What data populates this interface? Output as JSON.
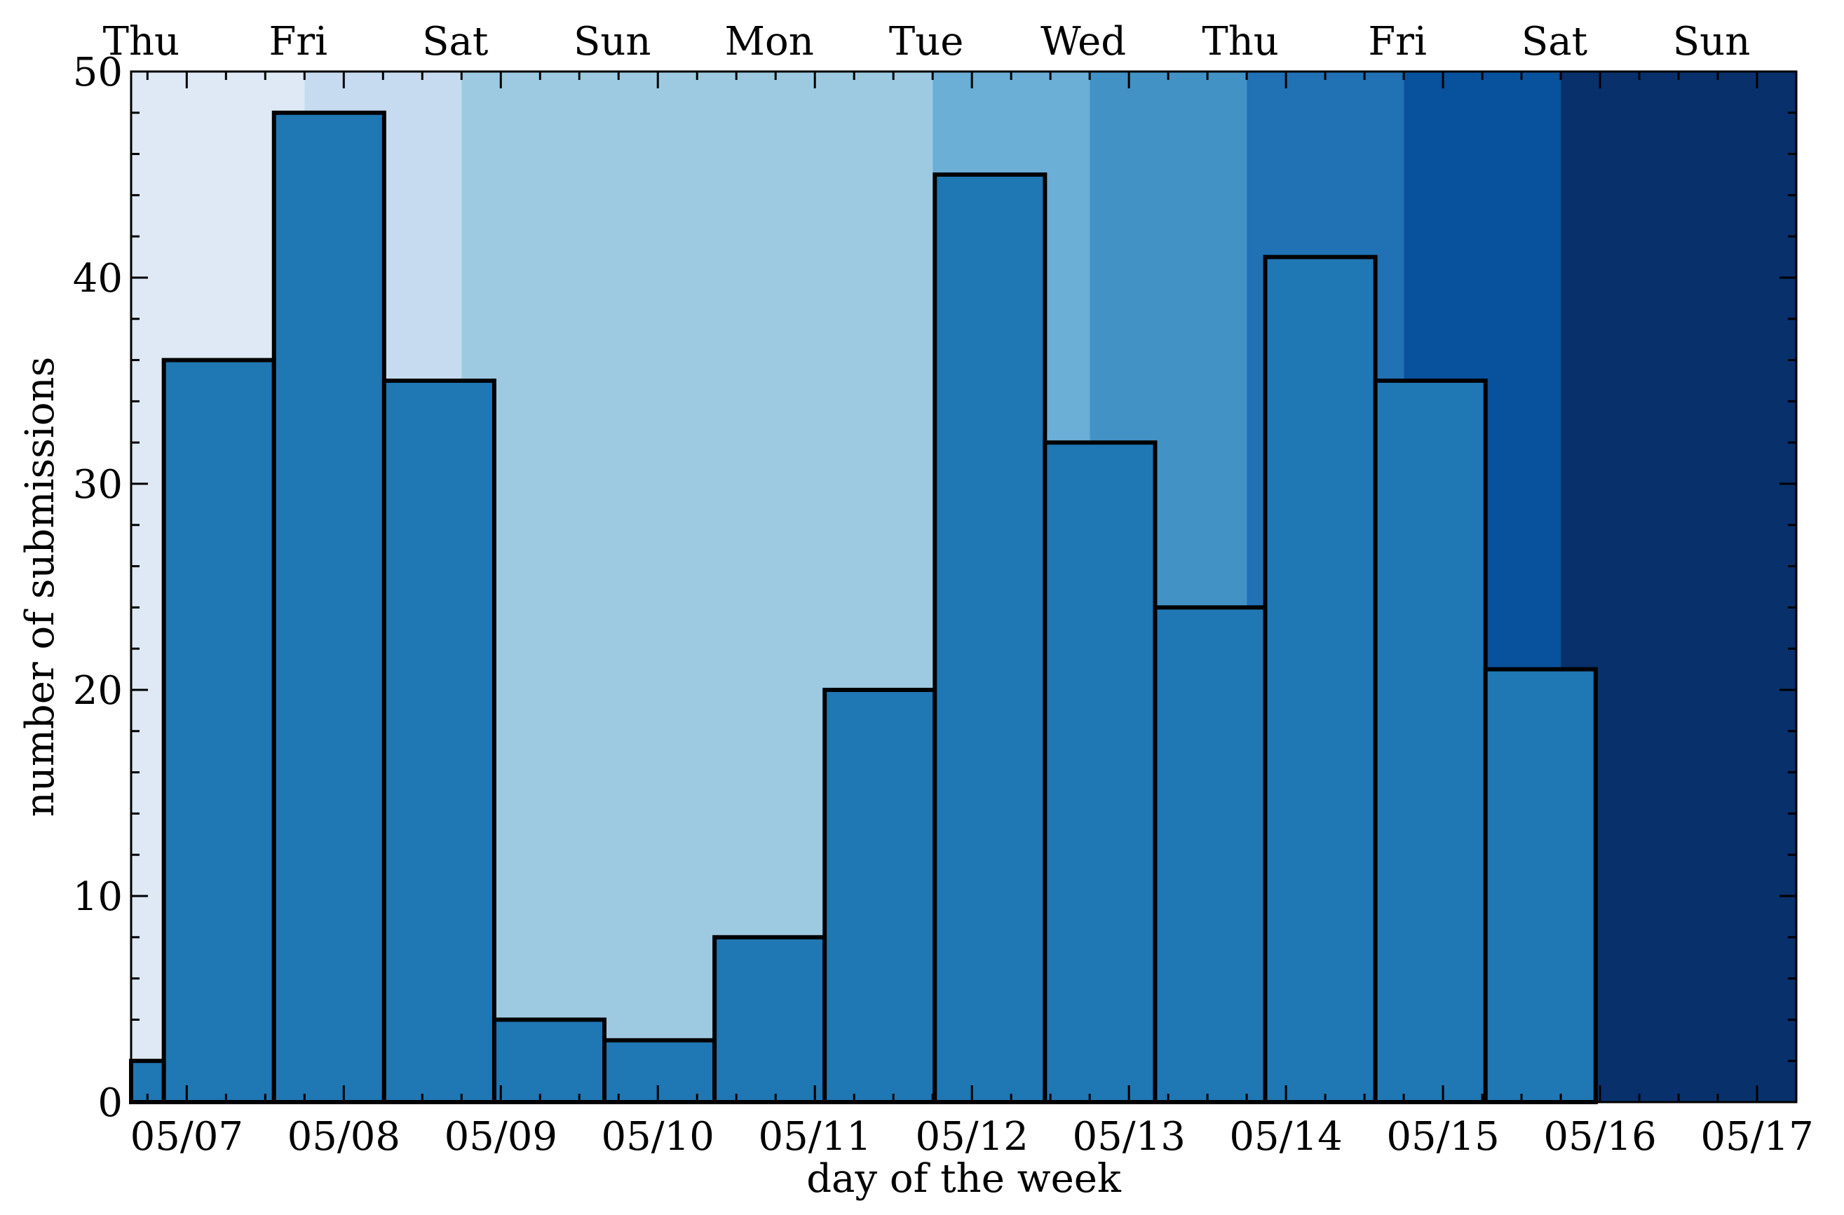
{
  "chart_data": {
    "type": "bar",
    "xlabel": "day of the week",
    "ylabel": "number of submissions",
    "ylim": [
      0,
      50
    ],
    "xlim": [
      "05/06 15:30",
      "05/17 06:00"
    ],
    "y_ticks": [
      "0",
      "10",
      "20",
      "30",
      "40",
      "50"
    ],
    "y_tick_values": [
      0,
      10,
      20,
      30,
      40,
      50
    ],
    "x_bottom_ticks": [
      {
        "date": "05/07",
        "label": "05/07"
      },
      {
        "date": "05/08",
        "label": "05/08"
      },
      {
        "date": "05/09",
        "label": "05/09"
      },
      {
        "date": "05/10",
        "label": "05/10"
      },
      {
        "date": "05/11",
        "label": "05/11"
      },
      {
        "date": "05/12",
        "label": "05/12"
      },
      {
        "date": "05/13",
        "label": "05/13"
      },
      {
        "date": "05/14",
        "label": "05/14"
      },
      {
        "date": "05/15",
        "label": "05/15"
      },
      {
        "date": "05/16",
        "label": "05/16"
      },
      {
        "date": "05/17",
        "label": "05/17"
      }
    ],
    "x_top_ticks": [
      {
        "date": "05/06 12:00",
        "label": "Thu"
      },
      {
        "date": "05/07 12:00",
        "label": "Fri"
      },
      {
        "date": "05/08 12:00",
        "label": "Sat"
      },
      {
        "date": "05/09 12:00",
        "label": "Sun"
      },
      {
        "date": "05/10 12:00",
        "label": "Mon"
      },
      {
        "date": "05/11 12:00",
        "label": "Tue"
      },
      {
        "date": "05/12 12:00",
        "label": "Wed"
      },
      {
        "date": "05/13 12:00",
        "label": "Thu"
      },
      {
        "date": "05/14 12:00",
        "label": "Fri"
      },
      {
        "date": "05/15 12:00",
        "label": "Sat"
      },
      {
        "date": "05/16 12:00",
        "label": "Sun"
      }
    ],
    "background_bands": [
      {
        "start": "05/06 15:30",
        "end": "05/07 18:00",
        "color": "#dee9f5"
      },
      {
        "start": "05/07 18:00",
        "end": "05/08 18:00",
        "color": "#c6dbef"
      },
      {
        "start": "05/08 18:00",
        "end": "05/11 18:00",
        "color": "#9ecae1"
      },
      {
        "start": "05/11 18:00",
        "end": "05/12 18:00",
        "color": "#6baed6"
      },
      {
        "start": "05/12 18:00",
        "end": "05/13 18:00",
        "color": "#4292c6"
      },
      {
        "start": "05/13 18:00",
        "end": "05/14 18:00",
        "color": "#2171b5"
      },
      {
        "start": "05/14 18:00",
        "end": "05/15 18:00",
        "color": "#08519c"
      },
      {
        "start": "05/15 18:00",
        "end": "05/17 06:00",
        "color": "#08306b"
      }
    ],
    "bin_edges": [
      "05/06 15:30",
      "05/06 20:30",
      "05/07 13:20",
      "05/08 06:10",
      "05/08 23:00",
      "05/09 15:50",
      "05/10 08:40",
      "05/11 01:30",
      "05/11 18:20",
      "05/12 11:10",
      "05/13 04:00",
      "05/13 20:50",
      "05/14 13:40",
      "05/15 06:30",
      "05/15 23:20"
    ],
    "values": [
      2,
      36,
      48,
      35,
      4,
      3,
      8,
      20,
      45,
      32,
      24,
      41,
      35,
      21
    ],
    "bar_color": "#1f77b4",
    "bar_edge_color": "#000000",
    "grid": false
  }
}
